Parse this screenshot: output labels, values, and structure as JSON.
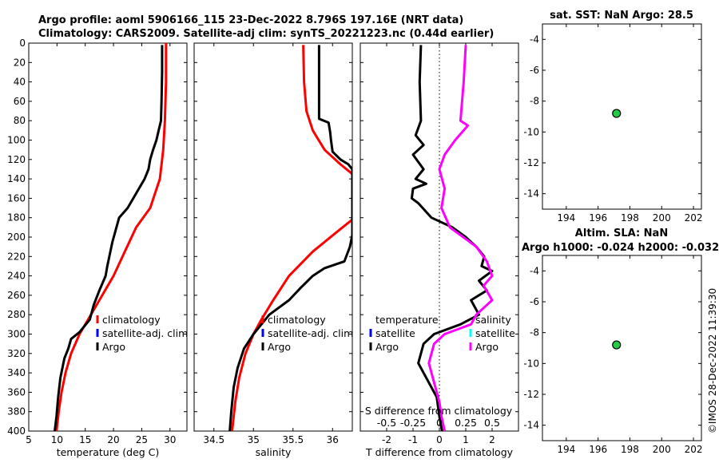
{
  "header": {
    "line1": "Argo profile: aoml 5906166_115 23-Dec-2022 8.796S 197.16E (NRT data)",
    "line2": "Climatology: CARS2009. Satellite-adj clim: synTS_20221223.nc (0.44d earlier)"
  },
  "watermark": "©IMOS 28-Dec-2022 11:39:30",
  "colors": {
    "climatology": "#ff0000",
    "satellite": "#0000ff",
    "satellite_s": "#00ffff",
    "argo": "#000000",
    "argo_s": "#ff00ff",
    "marker": "#22cc44"
  },
  "depth_axis": {
    "min": 0,
    "max": 400,
    "ticks": [
      0,
      20,
      40,
      60,
      80,
      100,
      120,
      140,
      160,
      180,
      200,
      220,
      240,
      260,
      280,
      300,
      320,
      340,
      360,
      380,
      400
    ]
  },
  "chart_data": [
    {
      "type": "line",
      "name": "temperature",
      "xlabel": "temperature (deg C)",
      "xlim": [
        5,
        33
      ],
      "xticks": [
        5,
        10,
        15,
        20,
        25,
        30
      ],
      "series": [
        {
          "name": "climatology",
          "color": "#ff0000",
          "points": [
            [
              29.3,
              0
            ],
            [
              29.3,
              40
            ],
            [
              29.1,
              80
            ],
            [
              28.8,
              110
            ],
            [
              28.2,
              140
            ],
            [
              26.5,
              170
            ],
            [
              24.0,
              190
            ],
            [
              22.0,
              215
            ],
            [
              20.0,
              240
            ],
            [
              17.5,
              265
            ],
            [
              15.5,
              285
            ],
            [
              14.0,
              300
            ],
            [
              12.5,
              320
            ],
            [
              11.5,
              340
            ],
            [
              10.8,
              360
            ],
            [
              10.3,
              380
            ],
            [
              9.9,
              400
            ]
          ]
        },
        {
          "name": "Argo",
          "color": "#000000",
          "points": [
            [
              28.6,
              2
            ],
            [
              28.6,
              30
            ],
            [
              28.5,
              60
            ],
            [
              28.4,
              80
            ],
            [
              28.0,
              90
            ],
            [
              27.6,
              100
            ],
            [
              27.0,
              110
            ],
            [
              26.5,
              120
            ],
            [
              26.2,
              130
            ],
            [
              25.5,
              140
            ],
            [
              24.5,
              150
            ],
            [
              22.5,
              170
            ],
            [
              21.0,
              180
            ],
            [
              19.8,
              205
            ],
            [
              18.9,
              230
            ],
            [
              18.6,
              240
            ],
            [
              17.5,
              255
            ],
            [
              16.5,
              270
            ],
            [
              15.8,
              285
            ],
            [
              14.0,
              298
            ],
            [
              12.5,
              305
            ],
            [
              12.0,
              315
            ],
            [
              11.3,
              325
            ],
            [
              10.6,
              345
            ],
            [
              10.2,
              365
            ],
            [
              9.9,
              385
            ],
            [
              9.6,
              400
            ]
          ]
        }
      ],
      "legend": [
        "climatology",
        "satellite-adj. clim",
        "Argo"
      ]
    },
    {
      "type": "line",
      "name": "salinity",
      "xlabel": "salinity",
      "xlim": [
        34.25,
        36.25
      ],
      "xticks": [
        34.5,
        35,
        35.5,
        36
      ],
      "series": [
        {
          "name": "climatology",
          "color": "#ff0000",
          "points": [
            [
              35.63,
              2
            ],
            [
              35.64,
              40
            ],
            [
              35.67,
              70
            ],
            [
              35.75,
              90
            ],
            [
              35.9,
              110
            ],
            [
              36.1,
              125
            ],
            [
              36.25,
              135
            ],
            [
              36.25,
              182
            ],
            [
              36.05,
              195
            ],
            [
              35.75,
              215
            ],
            [
              35.45,
              240
            ],
            [
              35.25,
              265
            ],
            [
              35.1,
              285
            ],
            [
              35.0,
              300
            ],
            [
              34.9,
              320
            ],
            [
              34.82,
              345
            ],
            [
              34.77,
              370
            ],
            [
              34.73,
              400
            ]
          ]
        },
        {
          "name": "Argo",
          "color": "#000000",
          "points": [
            [
              35.83,
              2
            ],
            [
              35.83,
              78
            ],
            [
              35.95,
              82
            ],
            [
              35.97,
              92
            ],
            [
              35.98,
              100
            ],
            [
              36.0,
              112
            ],
            [
              36.1,
              120
            ],
            [
              36.2,
              125
            ],
            [
              36.25,
              130
            ],
            [
              36.25,
              198
            ],
            [
              36.22,
              210
            ],
            [
              36.15,
              225
            ],
            [
              35.9,
              232
            ],
            [
              35.75,
              240
            ],
            [
              35.6,
              252
            ],
            [
              35.45,
              265
            ],
            [
              35.2,
              280
            ],
            [
              35.1,
              290
            ],
            [
              35.0,
              300
            ],
            [
              34.88,
              315
            ],
            [
              34.8,
              335
            ],
            [
              34.75,
              355
            ],
            [
              34.72,
              380
            ],
            [
              34.7,
              400
            ]
          ]
        }
      ],
      "legend": [
        "climatology",
        "satellite-adj. clim",
        "Argo"
      ]
    },
    {
      "type": "line",
      "name": "difference",
      "xlabel": "T difference from climatology",
      "xlim": [
        -3,
        3
      ],
      "xticks": [
        -2,
        -1,
        0,
        1,
        2
      ],
      "s_label": "S difference from climatology",
      "s_ticks": [
        "-0.5",
        "-0.25",
        "0",
        "0.25",
        "0.5"
      ],
      "series": [
        {
          "name": "temperature Argo",
          "color": "#000000",
          "points": [
            [
              -0.7,
              2
            ],
            [
              -0.75,
              40
            ],
            [
              -0.7,
              80
            ],
            [
              -0.9,
              95
            ],
            [
              -0.6,
              105
            ],
            [
              -1.0,
              115
            ],
            [
              -0.6,
              130
            ],
            [
              -0.9,
              140
            ],
            [
              -0.5,
              145
            ],
            [
              -1.0,
              150
            ],
            [
              -1.05,
              160
            ],
            [
              -0.8,
              165
            ],
            [
              -0.3,
              180
            ],
            [
              0.5,
              190
            ],
            [
              1.0,
              200
            ],
            [
              1.4,
              210
            ],
            [
              1.7,
              220
            ],
            [
              1.6,
              230
            ],
            [
              2.0,
              235
            ],
            [
              1.5,
              245
            ],
            [
              1.8,
              255
            ],
            [
              1.2,
              265
            ],
            [
              1.5,
              280
            ],
            [
              0.8,
              290
            ],
            [
              -0.2,
              300
            ],
            [
              -0.6,
              310
            ],
            [
              -0.8,
              330
            ],
            [
              -0.5,
              345
            ],
            [
              -0.1,
              365
            ],
            [
              0.0,
              385
            ],
            [
              0.1,
              400
            ]
          ]
        },
        {
          "name": "salinity Argo",
          "color": "#ff00ff",
          "points": [
            [
              0.25,
              2
            ],
            [
              0.23,
              40
            ],
            [
              0.2,
              80
            ],
            [
              0.27,
              85
            ],
            [
              0.15,
              100
            ],
            [
              0.05,
              115
            ],
            [
              0.0,
              130
            ],
            [
              0.05,
              150
            ],
            [
              0.02,
              170
            ],
            [
              0.1,
              190
            ],
            [
              0.35,
              210
            ],
            [
              0.45,
              225
            ],
            [
              0.5,
              240
            ],
            [
              0.42,
              250
            ],
            [
              0.5,
              265
            ],
            [
              0.35,
              280
            ],
            [
              0.3,
              290
            ],
            [
              0.05,
              300
            ],
            [
              -0.05,
              310
            ],
            [
              -0.1,
              330
            ],
            [
              -0.05,
              350
            ],
            [
              0.0,
              370
            ],
            [
              0.02,
              385
            ],
            [
              0.05,
              400
            ]
          ]
        }
      ],
      "legend_left": {
        "title": "temperature",
        "items": [
          "satellite",
          "Argo"
        ]
      },
      "legend_right": {
        "title": "salinity",
        "items": [
          "satellite",
          "Argo"
        ]
      }
    },
    {
      "type": "scatter",
      "name": "sst_map",
      "title": "sat. SST: NaN Argo: 28.5",
      "xlim": [
        192.5,
        202.5
      ],
      "ylim": [
        -15,
        -3
      ],
      "xticks": [
        194,
        196,
        198,
        200,
        202
      ],
      "yticks": [
        -4,
        -6,
        -8,
        -10,
        -12,
        -14
      ],
      "points": [
        [
          197.16,
          -8.796
        ]
      ]
    },
    {
      "type": "scatter",
      "name": "sla_map",
      "title": "Altim. SLA: NaN",
      "title2": "Argo h1000: -0.024 h2000: -0.032",
      "xlim": [
        192.5,
        202.5
      ],
      "ylim": [
        -15,
        -3
      ],
      "xticks": [
        194,
        196,
        198,
        200,
        202
      ],
      "yticks": [
        -4,
        -6,
        -8,
        -10,
        -12,
        -14
      ],
      "points": [
        [
          197.16,
          -8.796
        ]
      ]
    }
  ]
}
